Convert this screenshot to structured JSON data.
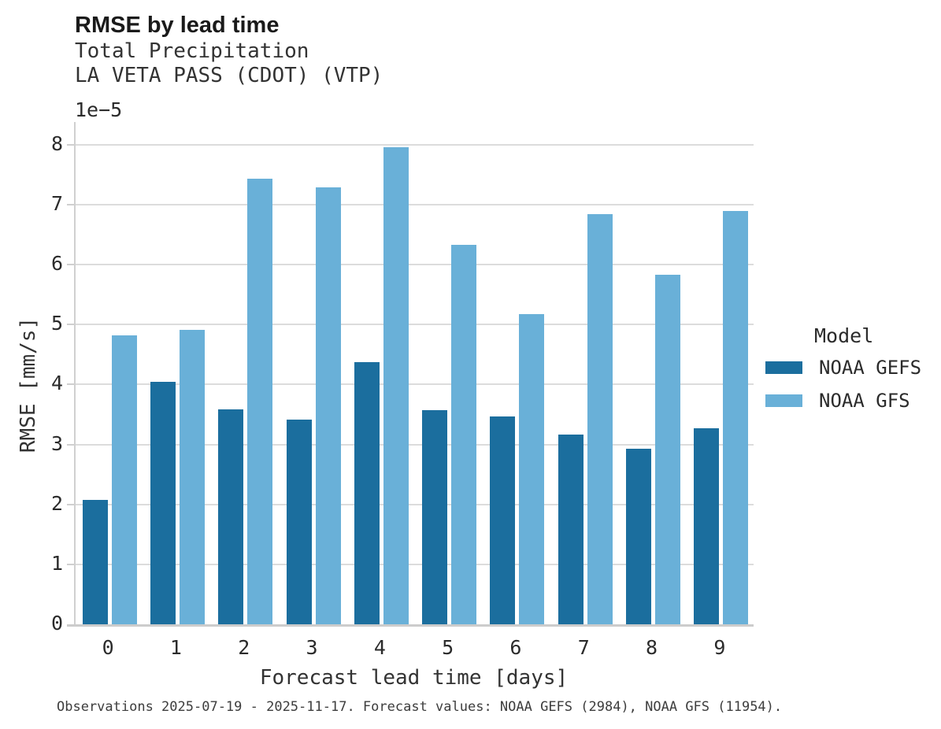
{
  "header": {
    "title": "RMSE by lead time",
    "subtitle_line1": "Total Precipitation",
    "subtitle_line2": "LA VETA PASS (CDOT) (VTP)"
  },
  "axes": {
    "offset_label": "1e−5",
    "xlabel": "Forecast lead time [days]",
    "ylabel": "RMSE [mm/s]"
  },
  "legend": {
    "title": "Model",
    "items": [
      {
        "label": "NOAA GEFS",
        "color": "#1b6e9e"
      },
      {
        "label": "NOAA GFS",
        "color": "#69b0d8"
      }
    ]
  },
  "caption": "Observations 2025-07-19 - 2025-11-17. Forecast values: NOAA GEFS (2984), NOAA GFS (11954).",
  "colors": {
    "gefs": "#1b6e9e",
    "gfs": "#69b0d8",
    "grid": "#dcdcdc",
    "spine": "#cccccc"
  },
  "chart_data": {
    "type": "bar",
    "title": "RMSE by lead time",
    "subtitle": [
      "Total Precipitation",
      "LA VETA PASS (CDOT) (VTP)"
    ],
    "xlabel": "Forecast lead time [days]",
    "ylabel": "RMSE [mm/s]",
    "y_scale_offset": "1e−5",
    "value_multiplier": 1e-05,
    "categories": [
      0,
      1,
      2,
      3,
      4,
      5,
      6,
      7,
      8,
      9
    ],
    "series": [
      {
        "name": "NOAA GEFS",
        "color": "#1b6e9e",
        "values": [
          2.07,
          4.04,
          3.59,
          3.42,
          4.38,
          3.57,
          3.47,
          3.17,
          2.93,
          3.27
        ]
      },
      {
        "name": "NOAA GFS",
        "color": "#69b0d8",
        "values": [
          4.82,
          4.91,
          7.43,
          7.29,
          7.96,
          6.33,
          5.17,
          6.85,
          5.83,
          6.9
        ]
      }
    ],
    "ylim": [
      0,
      8.38
    ],
    "yticks": [
      0,
      1,
      2,
      3,
      4,
      5,
      6,
      7,
      8
    ],
    "grid": true,
    "legend_position": "right",
    "legend_title": "Model"
  }
}
